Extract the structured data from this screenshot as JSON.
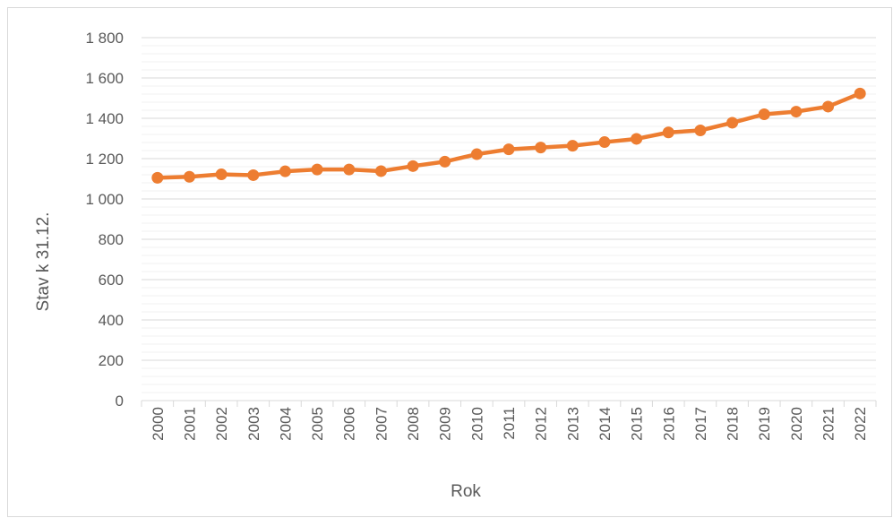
{
  "chart_data": {
    "type": "line",
    "title": "",
    "xlabel": "Rok",
    "ylabel": "Stav k 31.12.",
    "ylim": [
      0,
      1800
    ],
    "ytick_values": [
      0,
      200,
      400,
      600,
      800,
      1000,
      1200,
      1400,
      1600,
      1800
    ],
    "ytick_labels": [
      "0",
      "200",
      "400",
      "600",
      "800",
      "1 000",
      "1 200",
      "1 400",
      "1 600",
      "1 800"
    ],
    "minor_gridlines": true,
    "legend": "none",
    "categories": [
      "2000",
      "2001",
      "2002",
      "2003",
      "2004",
      "2005",
      "2006",
      "2007",
      "2008",
      "2009",
      "2010",
      "2011",
      "2012",
      "2013",
      "2014",
      "2015",
      "2016",
      "2017",
      "2018",
      "2019",
      "2020",
      "2021",
      "2022"
    ],
    "series": [
      {
        "color": "#ed7d31",
        "values": [
          1105,
          1110,
          1122,
          1118,
          1137,
          1146,
          1146,
          1138,
          1163,
          1185,
          1222,
          1246,
          1255,
          1264,
          1282,
          1298,
          1330,
          1340,
          1378,
          1420,
          1433,
          1458,
          1523
        ]
      }
    ]
  }
}
